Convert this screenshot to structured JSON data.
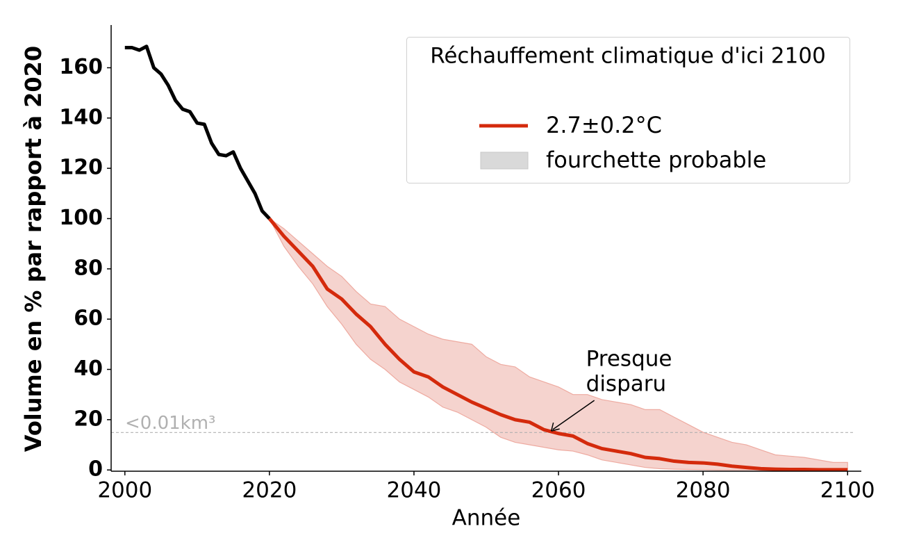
{
  "chart_data": {
    "type": "line",
    "xlabel": "Année",
    "ylabel": "Volume en % par rapport à 2020",
    "xlim": [
      1998.1,
      2101.9
    ],
    "ylim": [
      -0.5,
      177
    ],
    "xticks": [
      2000,
      2020,
      2040,
      2060,
      2080,
      2100
    ],
    "yticks": [
      0,
      20,
      40,
      60,
      80,
      100,
      120,
      140,
      160
    ],
    "legend_title": "Réchauffement climatique d'ici 2100",
    "legend_loc": "upper right",
    "series": [
      {
        "color": "#000000",
        "x": [
          2000,
          2001,
          2002,
          2003,
          2004,
          2005,
          2006,
          2007,
          2008,
          2009,
          2010,
          2011,
          2012,
          2013,
          2014,
          2015,
          2016,
          2017,
          2018,
          2019,
          2020
        ],
        "values": [
          168,
          168,
          167,
          168.5,
          160,
          157.5,
          153,
          147,
          143.5,
          142.5,
          138,
          137.5,
          130,
          125.5,
          125,
          126.5,
          120,
          115,
          110,
          103,
          100
        ]
      },
      {
        "name": "2.7±0.2°C",
        "color": "#d42a0c",
        "x": [
          2020,
          2022,
          2024,
          2026,
          2028,
          2030,
          2032,
          2034,
          2036,
          2038,
          2040,
          2042,
          2044,
          2046,
          2048,
          2050,
          2052,
          2054,
          2056,
          2058,
          2060,
          2062,
          2064,
          2066,
          2068,
          2070,
          2072,
          2074,
          2076,
          2078,
          2080,
          2082,
          2084,
          2086,
          2088,
          2090,
          2092,
          2094,
          2096,
          2098,
          2100
        ],
        "values": [
          100,
          93,
          87,
          81,
          72,
          68,
          62,
          57,
          50,
          44,
          39,
          37,
          33,
          30,
          27,
          24.5,
          22,
          20,
          19,
          16,
          14.5,
          13.5,
          10.5,
          8.5,
          7.5,
          6.5,
          5,
          4.5,
          3.5,
          3,
          2.8,
          2.3,
          1.5,
          1,
          0.5,
          0.3,
          0.2,
          0.2,
          0.1,
          0.1,
          0.1
        ]
      }
    ],
    "band": {
      "name": "fourchette probable",
      "color": "#f5d3ce",
      "edge_color": "#eeaaa0",
      "legend_color": "#d9d9d9",
      "upper": [
        100,
        96,
        91,
        86,
        81,
        77,
        71,
        66,
        65,
        60,
        57,
        54,
        52,
        51,
        50,
        45,
        42,
        41,
        37,
        35,
        33,
        30,
        30,
        28,
        27,
        26,
        24,
        24,
        21,
        18,
        15,
        13,
        11,
        10,
        8,
        6,
        5.5,
        5,
        4,
        3,
        3
      ],
      "lower": [
        100,
        89,
        81,
        74,
        65,
        58,
        50,
        44,
        40,
        35,
        32,
        29,
        25,
        23,
        20,
        17,
        13,
        11,
        10,
        9,
        8,
        7.5,
        6,
        4,
        3,
        2,
        1,
        0.5,
        0.3,
        0.2,
        0.1,
        0,
        0,
        0,
        0,
        0,
        0,
        0,
        0,
        0,
        0
      ]
    },
    "hline": {
      "y": 14.9,
      "label": "<0.01km³",
      "color": "#b0b0b0"
    },
    "annotation": {
      "lines": [
        "Presque",
        "disparu"
      ],
      "xy": [
        2059,
        15.5
      ]
    }
  }
}
